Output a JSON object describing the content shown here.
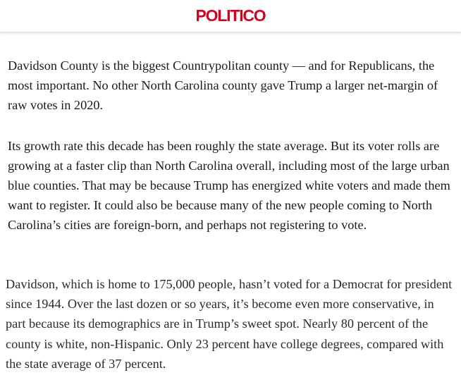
{
  "header": {
    "logo_text": "POLITICO",
    "brand_color": "#d6001c"
  },
  "article": {
    "paragraphs": [
      "Davidson County is the biggest Countrypolitan county — and for Republicans, the most important. No other North Carolina county gave Trump a larger net-margin of raw votes in 2020.",
      "Its growth rate this decade has been roughly the state average. But its voter rolls are growing at a faster clip than North Carolina overall, including most of the large urban blue counties. That may be because Trump has energized white voters and made them want to register. It could also be because many of the new people coming to North Carolina’s cities are foreign-born, and perhaps not registering to vote.",
      "Davidson, which is home to 175,000 people, hasn’t voted for a Democrat for president since 1944. Over the last dozen or so years, it’s become even more conservative, in part because its demographics are in Trump’s sweet spot. Nearly 80 percent of the county is white, non-Hispanic. Only 23 percent have college degrees, compared with the state average of 37 percent."
    ]
  }
}
